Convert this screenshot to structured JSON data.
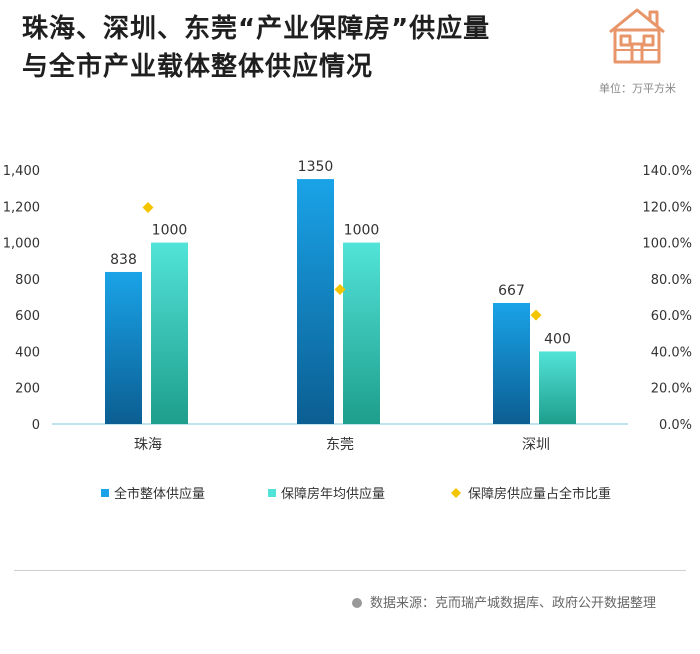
{
  "header": {
    "title_line1": "珠海、深圳、东莞“产业保障房”供应量",
    "title_line2": "与全市产业载体整体供应情况",
    "unit": "单位：万平方米"
  },
  "footer": {
    "source": "数据来源：克而瑞产城数据库、政府公开数据整理"
  },
  "colors": {
    "series1_top": "#1aa3e8",
    "series1_bottom": "#0b5e92",
    "series2_top": "#52e3d8",
    "series2_bottom": "#1e9e8c",
    "ratio_marker": "#f5c400",
    "logo": "#e8956a"
  },
  "logo_icon": "house-icon",
  "chart_data": {
    "type": "bar",
    "categories": [
      "珠海",
      "东莞",
      "深圳"
    ],
    "series": [
      {
        "name": "全市整体供应量",
        "values": [
          838,
          1350,
          667
        ],
        "labels": [
          "838",
          "1350",
          "667"
        ]
      },
      {
        "name": "保障房年均供应量",
        "values": [
          1000,
          1000,
          400
        ],
        "labels": [
          "1000",
          "1000",
          "400"
        ]
      }
    ],
    "ratio_series": {
      "name": "保障房供应量占全市比重",
      "type": "scatter",
      "axis": "right",
      "values": [
        119.3,
        74.1,
        60.0
      ]
    },
    "y_left": {
      "min": 0,
      "max": 1400,
      "ticks": [
        "0",
        "200",
        "400",
        "600",
        "800",
        "1,000",
        "1,200",
        "1,400"
      ]
    },
    "y_right": {
      "min": 0,
      "max": 140,
      "ticks": [
        "0.0%",
        "20.0%",
        "40.0%",
        "60.0%",
        "80.0%",
        "100.0%",
        "120.0%",
        "140.0%"
      ]
    },
    "legend_position": "bottom",
    "grid": false
  }
}
